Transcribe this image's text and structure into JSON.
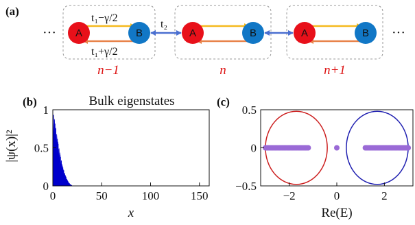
{
  "panels": {
    "a": "(a)",
    "b": "(b)",
    "c": "(c)"
  },
  "lattice": {
    "left_dots": "···",
    "right_dots": "···",
    "site_a": "A",
    "site_b": "B",
    "hop_top": "t₁−γ/2",
    "hop_bottom": "t₁+γ/2",
    "hop_inter": "t₂",
    "cells": [
      "n−1",
      "n",
      "n+1"
    ],
    "colors": {
      "site_a": "#e8101a",
      "site_b": "#1177c6",
      "forward": "#f5b91e",
      "backward": "#e8834a",
      "inter": "#4a6fd0"
    }
  },
  "plot_b": {
    "title": "Bulk eigenstates",
    "xlabel": "x",
    "ylabel": "|ψ(x)|²",
    "x_ticks": [
      "0",
      "50",
      "100",
      "150"
    ],
    "y_ticks": [
      "0",
      "0.5",
      "1"
    ],
    "color": "#0000cc"
  },
  "plot_c": {
    "xlabel": "Re(E)",
    "x_ticks": [
      "−2",
      "0",
      "2"
    ],
    "y_ticks": [
      "−0.5",
      "0",
      "0.5"
    ],
    "loop_left_color": "#cc1f1f",
    "loop_right_color": "#1f1fb0",
    "points_color": "#9a6ad6"
  },
  "chart_data": [
    {
      "type": "area",
      "title": "Bulk eigenstates",
      "xlabel": "x",
      "ylabel": "|ψ(x)|²",
      "xlim": [
        0,
        160
      ],
      "ylim": [
        0,
        1
      ],
      "envelope": {
        "x": [
          0,
          1,
          2,
          3,
          4,
          6,
          8,
          10,
          12,
          14,
          16,
          18,
          20,
          160
        ],
        "y": [
          0.97,
          0.92,
          0.85,
          0.77,
          0.68,
          0.52,
          0.38,
          0.26,
          0.17,
          0.1,
          0.05,
          0.02,
          0.0,
          0.0
        ]
      }
    },
    {
      "type": "scatter",
      "xlabel": "Re(E)",
      "xlim": [
        -3.2,
        3.2
      ],
      "ylim": [
        -0.5,
        0.5
      ],
      "series": [
        {
          "x_range": [
            -3.0,
            -1.2
          ],
          "y": 0
        },
        {
          "x_range": [
            1.2,
            3.0
          ],
          "y": 0
        },
        {
          "x": [
            0
          ],
          "y": [
            0
          ]
        }
      ],
      "loops": [
        {
          "center_x": -1.7,
          "center_y": 0,
          "radius_x": 1.3,
          "radius_y": 0.48
        },
        {
          "center_x": 1.7,
          "center_y": 0,
          "radius_x": 1.3,
          "radius_y": 0.48
        }
      ]
    }
  ]
}
